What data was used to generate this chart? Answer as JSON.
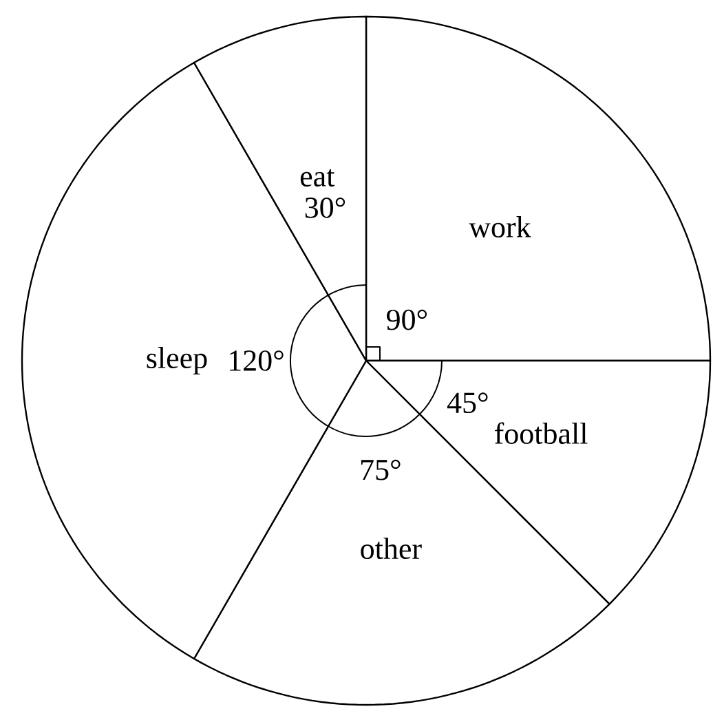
{
  "chart_data": {
    "type": "pie",
    "categories": [
      "work",
      "football",
      "other",
      "sleep",
      "eat"
    ],
    "values": [
      90,
      45,
      75,
      120,
      30
    ],
    "value_labels": [
      "90°",
      "45°",
      "75°",
      "120°",
      "30°"
    ],
    "colors": [
      "#ffffff",
      "#ffffff",
      "#ffffff",
      "#ffffff",
      "#ffffff"
    ]
  }
}
